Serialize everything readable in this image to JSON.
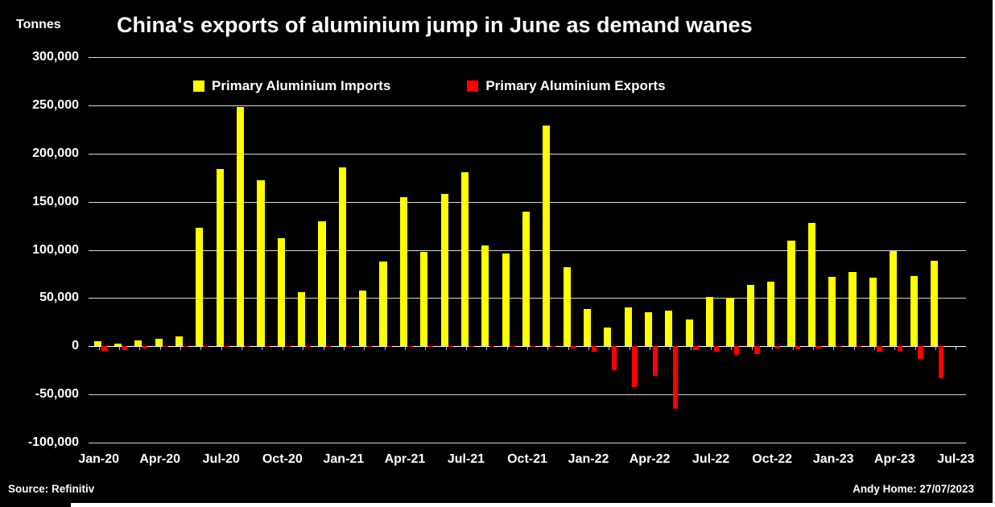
{
  "header": {
    "units_label": "Tonnes",
    "title": "China's exports of aluminium jump in June as demand wanes"
  },
  "legend": [
    {
      "label": "Primary Aluminium Imports",
      "color": "#FFFF00"
    },
    {
      "label": "Primary Aluminium Exports",
      "color": "#FF0000"
    }
  ],
  "footer": {
    "source": "Source: Refinitiv",
    "credit": "Andy Home: 27/07/2023"
  },
  "chart_data": {
    "type": "bar",
    "title": "China's exports of aluminium jump in June as demand wanes",
    "ylabel": "Tonnes",
    "ylim": [
      -100000,
      300000
    ],
    "ytick_step": 50000,
    "grid": true,
    "legend_position": "top",
    "background_color": "#000000",
    "grid_color": "#FFFFFF",
    "x_tick_labels": [
      "Jan-20",
      "Apr-20",
      "Jul-20",
      "Oct-20",
      "Jan-21",
      "Apr-21",
      "Jul-21",
      "Oct-21",
      "Jan-22",
      "Apr-22",
      "Jul-22",
      "Oct-22",
      "Jan-23",
      "Apr-23",
      "Jul-23"
    ],
    "categories": [
      "Jan-20",
      "Feb-20",
      "Mar-20",
      "Apr-20",
      "May-20",
      "Jun-20",
      "Jul-20",
      "Aug-20",
      "Sep-20",
      "Oct-20",
      "Nov-20",
      "Dec-20",
      "Jan-21",
      "Feb-21",
      "Mar-21",
      "Apr-21",
      "May-21",
      "Jun-21",
      "Jul-21",
      "Aug-21",
      "Sep-21",
      "Oct-21",
      "Nov-21",
      "Dec-21",
      "Jan-22",
      "Feb-22",
      "Mar-22",
      "Apr-22",
      "May-22",
      "Jun-22",
      "Jul-22",
      "Aug-22",
      "Sep-22",
      "Oct-22",
      "Nov-22",
      "Dec-22",
      "Jan-23",
      "Feb-23",
      "Mar-23",
      "Apr-23",
      "May-23",
      "Jun-23",
      "Jul-23"
    ],
    "series": [
      {
        "name": "Primary Aluminium Imports",
        "color": "#FFFF00",
        "values": [
          5000,
          3000,
          6000,
          8000,
          10000,
          123000,
          184000,
          248000,
          172000,
          112000,
          56000,
          130000,
          186000,
          58000,
          88000,
          155000,
          98000,
          158000,
          181000,
          105000,
          96000,
          140000,
          229000,
          82000,
          39000,
          19000,
          40000,
          35000,
          37000,
          28000,
          51000,
          50000,
          64000,
          67000,
          110000,
          128000,
          72000,
          77000,
          71000,
          99000,
          73000,
          89000,
          null
        ]
      },
      {
        "name": "Primary Aluminium Exports",
        "color": "#FF0000",
        "values": [
          -5000,
          -4000,
          -2000,
          -1000,
          -1000,
          -1000,
          -1000,
          -1000,
          -1000,
          -1000,
          -1000,
          -1000,
          -1000,
          -1000,
          -1000,
          -1000,
          -1000,
          -1000,
          -1000,
          -1000,
          -1000,
          -1000,
          -1000,
          -2000,
          -6000,
          -25000,
          -42000,
          -31000,
          -65000,
          -4000,
          -6000,
          -9000,
          -8000,
          -2000,
          -3000,
          -2000,
          -1000,
          -1000,
          -6000,
          -5000,
          -13000,
          -33000,
          null
        ]
      }
    ]
  }
}
